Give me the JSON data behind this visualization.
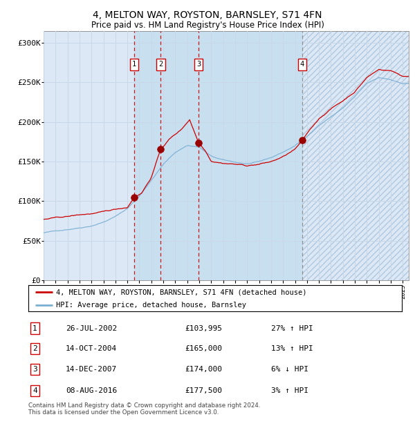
{
  "title": "4, MELTON WAY, ROYSTON, BARNSLEY, S71 4FN",
  "subtitle": "Price paid vs. HM Land Registry's House Price Index (HPI)",
  "background_color": "#ffffff",
  "plot_bg_color": "#dce8f5",
  "transactions": [
    {
      "num": 1,
      "date_x": 2002.57,
      "price": 103995,
      "label": "26-JUL-2002",
      "price_str": "£103,995",
      "hpi_str": "27% ↑ HPI"
    },
    {
      "num": 2,
      "date_x": 2004.78,
      "price": 165000,
      "label": "14-OCT-2004",
      "price_str": "£165,000",
      "hpi_str": "13% ↑ HPI"
    },
    {
      "num": 3,
      "date_x": 2007.95,
      "price": 174000,
      "label": "14-DEC-2007",
      "price_str": "£174,000",
      "hpi_str": "6% ↓ HPI"
    },
    {
      "num": 4,
      "date_x": 2016.6,
      "price": 177500,
      "label": "08-AUG-2016",
      "price_str": "£177,500",
      "hpi_str": "3% ↑ HPI"
    }
  ],
  "shaded_region": [
    2002.57,
    2016.6
  ],
  "ylim": [
    0,
    315000
  ],
  "xlim_start": 1995.0,
  "xlim_end": 2025.5,
  "yticks": [
    0,
    50000,
    100000,
    150000,
    200000,
    250000,
    300000
  ],
  "ytick_labels": [
    "£0",
    "£50K",
    "£100K",
    "£150K",
    "£200K",
    "£250K",
    "£300K"
  ],
  "xticks": [
    1995,
    1996,
    1997,
    1998,
    1999,
    2000,
    2001,
    2002,
    2003,
    2004,
    2005,
    2006,
    2007,
    2008,
    2009,
    2010,
    2011,
    2012,
    2013,
    2014,
    2015,
    2016,
    2017,
    2018,
    2019,
    2020,
    2021,
    2022,
    2023,
    2024,
    2025
  ],
  "hpi_color": "#7bafd4",
  "price_color": "#cc0000",
  "grid_color": "#c8d8e8",
  "footnote": "Contains HM Land Registry data © Crown copyright and database right 2024.\nThis data is licensed under the Open Government Licence v3.0."
}
